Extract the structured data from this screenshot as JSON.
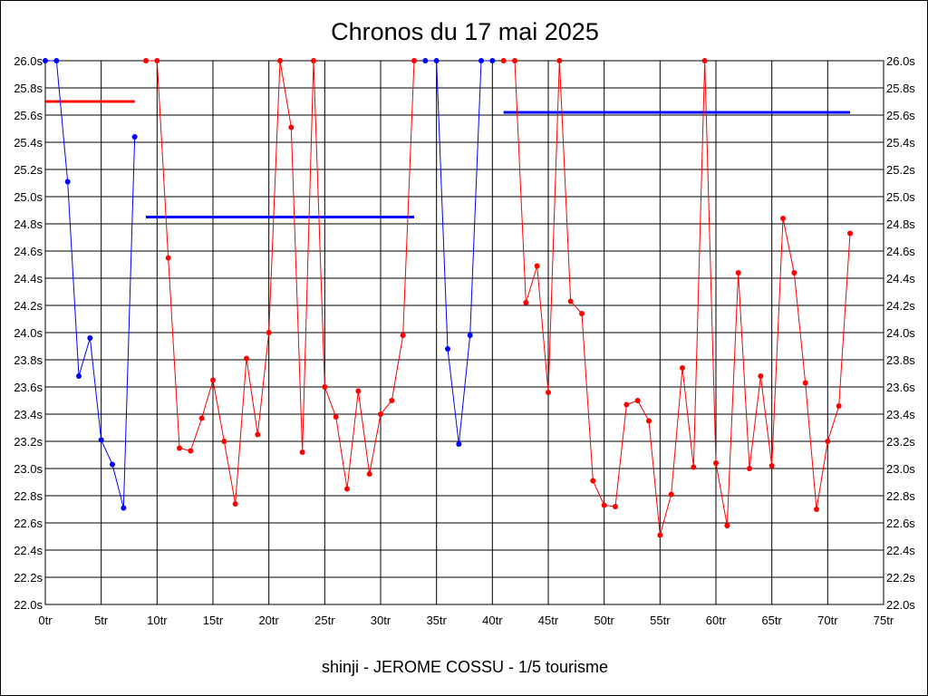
{
  "chart_data": {
    "type": "line",
    "title": "Chronos du 17 mai 2025",
    "footer": "shinji - JEROME COSSU - 1/5 tourisme",
    "xlabel": "",
    "ylabel": "",
    "xlim": [
      0,
      75
    ],
    "ylim": [
      22.0,
      26.0
    ],
    "x_ticks": [
      0,
      5,
      10,
      15,
      20,
      25,
      30,
      35,
      40,
      45,
      50,
      55,
      60,
      65,
      70,
      75
    ],
    "x_tick_labels": [
      "0tr",
      "5tr",
      "10tr",
      "15tr",
      "20tr",
      "25tr",
      "30tr",
      "35tr",
      "40tr",
      "45tr",
      "50tr",
      "55tr",
      "60tr",
      "65tr",
      "70tr",
      "75tr"
    ],
    "y_ticks": [
      22.0,
      22.2,
      22.4,
      22.6,
      22.8,
      23.0,
      23.2,
      23.4,
      23.6,
      23.8,
      24.0,
      24.2,
      24.4,
      24.6,
      24.8,
      25.0,
      25.2,
      25.4,
      25.6,
      25.8,
      26.0
    ],
    "y_tick_labels": [
      "22.0s",
      "22.2s",
      "22.4s",
      "22.6s",
      "22.8s",
      "23.0s",
      "23.2s",
      "23.4s",
      "23.6s",
      "23.8s",
      "24.0s",
      "24.2s",
      "24.4s",
      "24.6s",
      "24.8s",
      "25.0s",
      "25.2s",
      "25.4s",
      "25.6s",
      "25.8s",
      "26.0s"
    ],
    "grid": true,
    "colors": {
      "blue": "#0000ff",
      "red": "#ff0000"
    },
    "series": [
      {
        "color": "#0000ff",
        "x": [
          0,
          1,
          2,
          3,
          4,
          5,
          6,
          7,
          8
        ],
        "values": [
          26.0,
          26.0,
          25.11,
          23.68,
          23.96,
          23.21,
          23.03,
          22.71,
          25.44
        ]
      },
      {
        "color": "#ff0000",
        "x": [
          9,
          10,
          11,
          12,
          13,
          14,
          15,
          16,
          17,
          18,
          19,
          20,
          21,
          22,
          23,
          24,
          25,
          26,
          27,
          28,
          29,
          30,
          31,
          32,
          33
        ],
        "values": [
          26.0,
          26.0,
          24.55,
          23.15,
          23.13,
          23.37,
          23.65,
          23.2,
          22.74,
          23.81,
          23.25,
          24.0,
          26.0,
          25.51,
          23.12,
          26.0,
          23.6,
          23.38,
          22.85,
          23.57,
          22.96,
          23.4,
          23.5,
          23.98,
          26.0
        ]
      },
      {
        "color": "#0000ff",
        "x": [
          34,
          35,
          36,
          37,
          38,
          39,
          40
        ],
        "values": [
          26.0,
          26.0,
          23.88,
          23.18,
          23.98,
          26.0,
          26.0
        ]
      },
      {
        "color": "#ff0000",
        "x": [
          41,
          42,
          43,
          44,
          45,
          46,
          47,
          48,
          49,
          50,
          51,
          52,
          53,
          54,
          55,
          56,
          57,
          58,
          59,
          60,
          61,
          62,
          63,
          64,
          65,
          66,
          67,
          68,
          69,
          70,
          71,
          72
        ],
        "values": [
          26.0,
          26.0,
          24.22,
          24.49,
          23.56,
          26.0,
          24.23,
          24.14,
          22.91,
          22.73,
          22.72,
          23.47,
          23.5,
          23.35,
          22.51,
          22.81,
          23.74,
          23.01,
          26.0,
          23.04,
          22.58,
          24.44,
          23.0,
          23.68,
          23.02,
          24.84,
          24.44,
          23.63,
          22.7,
          23.2,
          23.46,
          24.73
        ]
      }
    ],
    "averages": [
      {
        "color": "#ff0000",
        "x": [
          0,
          8
        ],
        "value": 25.7
      },
      {
        "color": "#0000ff",
        "x": [
          9,
          33
        ],
        "value": 24.85
      },
      {
        "color": "#0000ff",
        "x": [
          41,
          72
        ],
        "value": 25.62
      }
    ]
  }
}
